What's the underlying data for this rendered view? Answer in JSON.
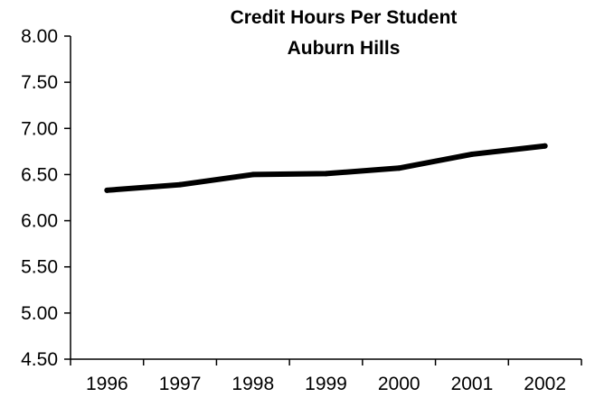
{
  "chart_data": {
    "type": "line",
    "title": "Credit Hours Per Student",
    "subtitle": "Auburn Hills",
    "xlabel": "",
    "ylabel": "",
    "categories": [
      "1996",
      "1997",
      "1998",
      "1999",
      "2000",
      "2001",
      "2002"
    ],
    "y_tick_labels": [
      "8.00",
      "7.50",
      "7.00",
      "6.50",
      "6.00",
      "5.50",
      "5.00",
      "4.50"
    ],
    "ylim": [
      4.5,
      8.0
    ],
    "grid": false,
    "legend": "none",
    "series": [
      {
        "values": [
          6.33,
          6.39,
          6.5,
          6.51,
          6.57,
          6.72,
          6.81
        ],
        "color": "#000000"
      }
    ]
  }
}
